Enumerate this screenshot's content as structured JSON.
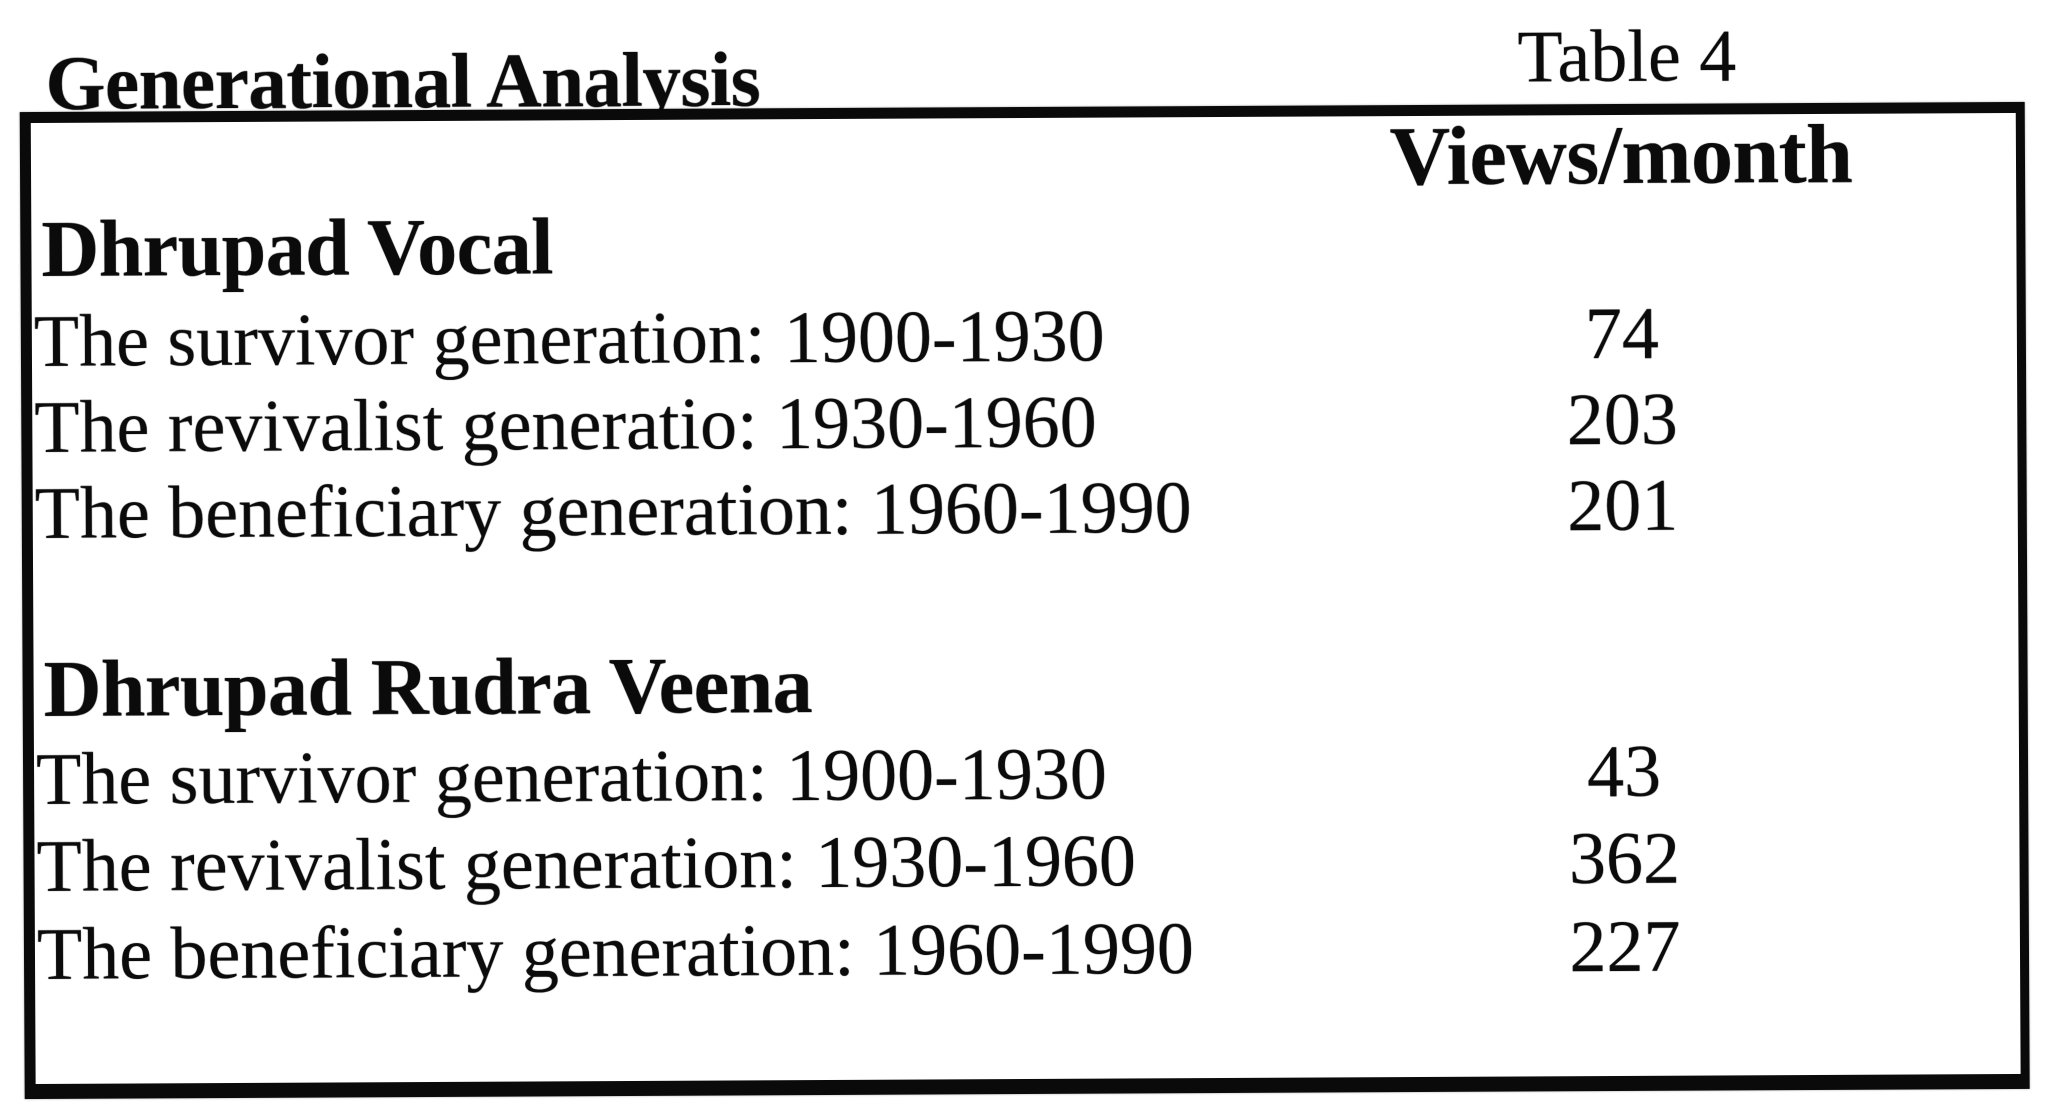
{
  "header": {
    "title": "Generational Analysis",
    "caption": "Table 4"
  },
  "table": {
    "value_column_header": "Views/month",
    "sections": [
      {
        "title": "Dhrupad Vocal",
        "rows": [
          {
            "label": "The survivor generation: 1900-1930",
            "value": 74
          },
          {
            "label": "The revivalist generatio: 1930-1960",
            "value": 203
          },
          {
            "label": "The beneficiary generation: 1960-1990",
            "value": 201
          }
        ]
      },
      {
        "title": "Dhrupad Rudra Veena",
        "rows": [
          {
            "label": "The survivor generation: 1900-1930",
            "value": 43
          },
          {
            "label": "The revivalist generation: 1930-1960",
            "value": 362
          },
          {
            "label": "The beneficiary generation: 1960-1990",
            "value": 227
          }
        ]
      }
    ]
  },
  "colors": {
    "ink": "#0b0b0b",
    "paper": "#ffffff"
  }
}
